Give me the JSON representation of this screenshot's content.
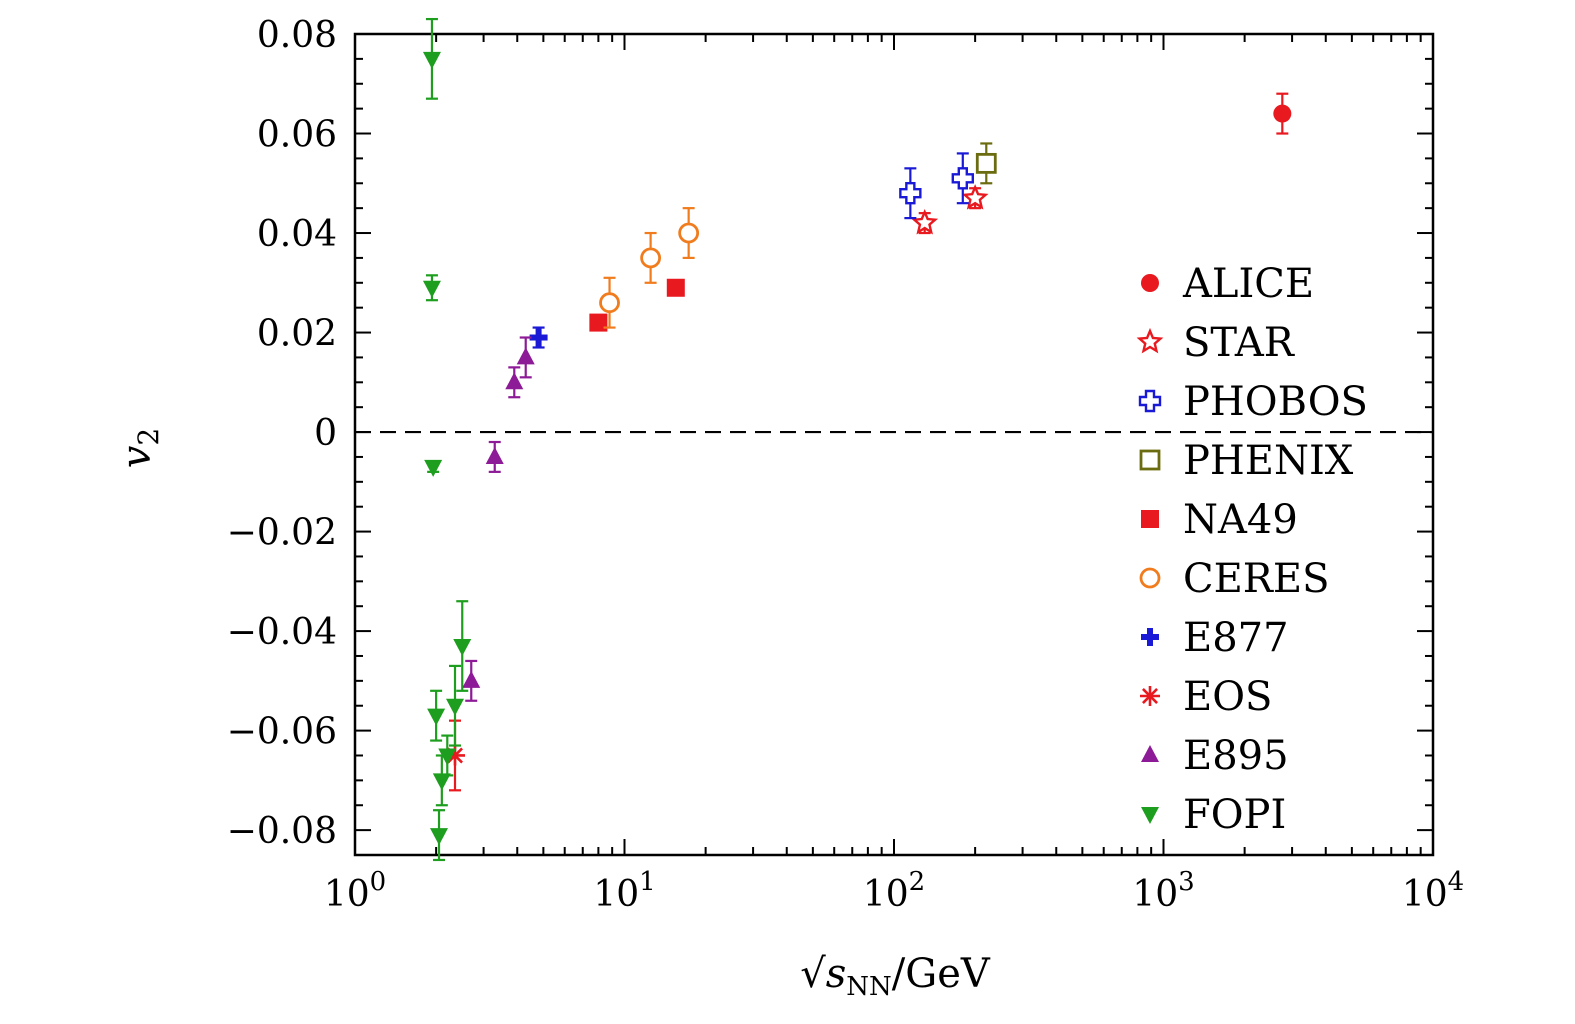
{
  "chart_data": {
    "type": "scatter",
    "xlabel_prefix": "√",
    "xlabel_var": "s",
    "xlabel_sub": "NN",
    "xlabel_unit": "/GeV",
    "ylabel_var": "v",
    "ylabel_sub": "2",
    "x_scale": "log",
    "xlim": [
      1,
      10000
    ],
    "ylim": [
      -0.085,
      0.08
    ],
    "x_ticks": [
      {
        "value": 1,
        "base": "10",
        "exp": "0"
      },
      {
        "value": 10,
        "base": "10",
        "exp": "1"
      },
      {
        "value": 100,
        "base": "10",
        "exp": "2"
      },
      {
        "value": 1000,
        "base": "10",
        "exp": "3"
      },
      {
        "value": 10000,
        "base": "10",
        "exp": "4"
      }
    ],
    "y_ticks": [
      {
        "value": 0.08,
        "label": "0.08"
      },
      {
        "value": 0.06,
        "label": "0.06"
      },
      {
        "value": 0.04,
        "label": "0.04"
      },
      {
        "value": 0.02,
        "label": "0.02"
      },
      {
        "value": 0,
        "label": "0"
      },
      {
        "value": -0.02,
        "label": "−0.02"
      },
      {
        "value": -0.04,
        "label": "−0.04"
      },
      {
        "value": -0.06,
        "label": "−0.06"
      },
      {
        "value": -0.08,
        "label": "−0.08"
      }
    ],
    "reference_line": {
      "y": 0,
      "style": "dashed"
    },
    "legend_position": "right",
    "series": [
      {
        "name": "ALICE",
        "marker": "circle-filled",
        "color": "#e8191f",
        "points": [
          {
            "x": 2760,
            "y": 0.064,
            "err": 0.004
          }
        ]
      },
      {
        "name": "STAR",
        "marker": "star-open",
        "color": "#e8191f",
        "points": [
          {
            "x": 130,
            "y": 0.042,
            "err": 0.002
          },
          {
            "x": 200,
            "y": 0.047,
            "err": 0.002
          }
        ]
      },
      {
        "name": "PHOBOS",
        "marker": "cross-open",
        "color": "#1a1ad6",
        "points": [
          {
            "x": 115,
            "y": 0.048,
            "err": 0.005
          },
          {
            "x": 180,
            "y": 0.051,
            "err": 0.005
          }
        ]
      },
      {
        "name": "PHENIX",
        "marker": "square-open",
        "color": "#6b6b10",
        "points": [
          {
            "x": 220,
            "y": 0.054,
            "err": 0.004
          }
        ]
      },
      {
        "name": "NA49",
        "marker": "square-filled",
        "color": "#e8191f",
        "points": [
          {
            "x": 8,
            "y": 0.022,
            "err": 0.001
          },
          {
            "x": 15.5,
            "y": 0.029,
            "err": 0.001
          }
        ]
      },
      {
        "name": "CERES",
        "marker": "circle-open",
        "color": "#f07c1e",
        "points": [
          {
            "x": 8.8,
            "y": 0.026,
            "err": 0.005
          },
          {
            "x": 12.5,
            "y": 0.035,
            "err": 0.005
          },
          {
            "x": 17.3,
            "y": 0.04,
            "err": 0.005
          }
        ]
      },
      {
        "name": "E877",
        "marker": "plus-filled",
        "color": "#1a1ad6",
        "points": [
          {
            "x": 4.8,
            "y": 0.019,
            "err": 0.002
          }
        ]
      },
      {
        "name": "EOS",
        "marker": "asterisk",
        "color": "#e8191f",
        "points": [
          {
            "x": 2.35,
            "y": -0.065,
            "err": 0.007
          }
        ]
      },
      {
        "name": "E895",
        "marker": "triangle-up-filled",
        "color": "#8d1a96",
        "points": [
          {
            "x": 3.3,
            "y": -0.005,
            "err": 0.003
          },
          {
            "x": 3.9,
            "y": 0.01,
            "err": 0.003
          },
          {
            "x": 4.3,
            "y": 0.015,
            "err": 0.004
          },
          {
            "x": 2.7,
            "y": -0.05,
            "err": 0.004
          }
        ]
      },
      {
        "name": "FOPI",
        "marker": "triangle-down-filled",
        "color": "#1e9e1e",
        "points": [
          {
            "x": 1.93,
            "y": 0.075,
            "err": 0.008
          },
          {
            "x": 1.93,
            "y": 0.029,
            "err": 0.0025
          },
          {
            "x": 1.95,
            "y": -0.007,
            "err": 0.001
          },
          {
            "x": 2.0,
            "y": -0.057,
            "err": 0.005
          },
          {
            "x": 2.1,
            "y": -0.07,
            "err": 0.005
          },
          {
            "x": 2.05,
            "y": -0.081,
            "err": 0.005
          },
          {
            "x": 2.2,
            "y": -0.065,
            "err": 0.004
          },
          {
            "x": 2.35,
            "y": -0.055,
            "err": 0.008
          },
          {
            "x": 2.5,
            "y": -0.043,
            "err": 0.009
          }
        ]
      }
    ]
  }
}
